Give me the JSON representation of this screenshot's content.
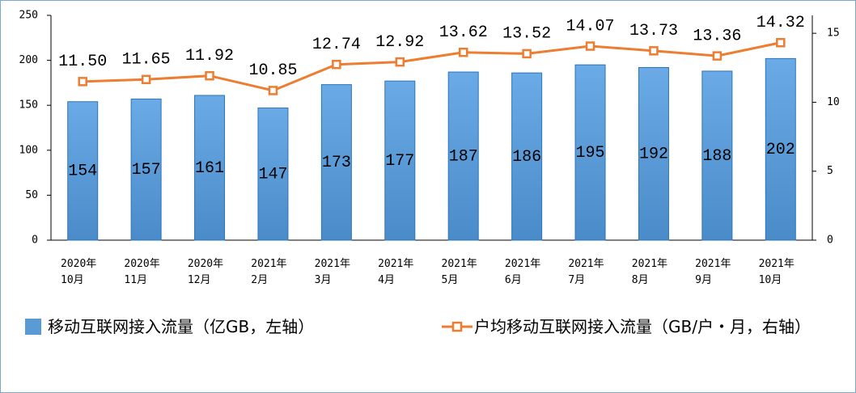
{
  "chart_data": {
    "type": "bar-line",
    "categories": [
      "2020年\n10月",
      "2020年\n11月",
      "2020年\n12月",
      "2021年\n2月",
      "2021年\n3月",
      "2021年\n4月",
      "2021年\n5月",
      "2021年\n6月",
      "2021年\n7月",
      "2021年\n8月",
      "2021年\n9月",
      "2021年\n10月"
    ],
    "series": [
      {
        "name": "移动互联网接入流量（亿GB，左轴）",
        "type": "bar",
        "color": "#5b9bd5",
        "values": [
          154,
          157,
          161,
          147,
          173,
          177,
          187,
          186,
          195,
          192,
          188,
          202
        ]
      },
      {
        "name": "户均移动互联网接入流量（GB/户・月，右轴）",
        "type": "line",
        "axis": "y2",
        "color": "#ed7d31",
        "values": [
          11.5,
          11.65,
          11.92,
          10.85,
          12.74,
          12.92,
          13.62,
          13.52,
          14.07,
          13.73,
          13.36,
          14.32
        ],
        "value_labels": [
          "11.50",
          "11.65",
          "11.92",
          "10.85",
          "12.74",
          "12.92",
          "13.62",
          "13.52",
          "14.07",
          "13.73",
          "13.36",
          "14.32"
        ]
      }
    ],
    "ylim": [
      0,
      250
    ],
    "yticks": [
      0,
      50,
      100,
      150,
      200,
      250
    ],
    "y2lim": [
      0,
      16.3
    ],
    "y2ticks": [
      0,
      5,
      10,
      15
    ]
  }
}
